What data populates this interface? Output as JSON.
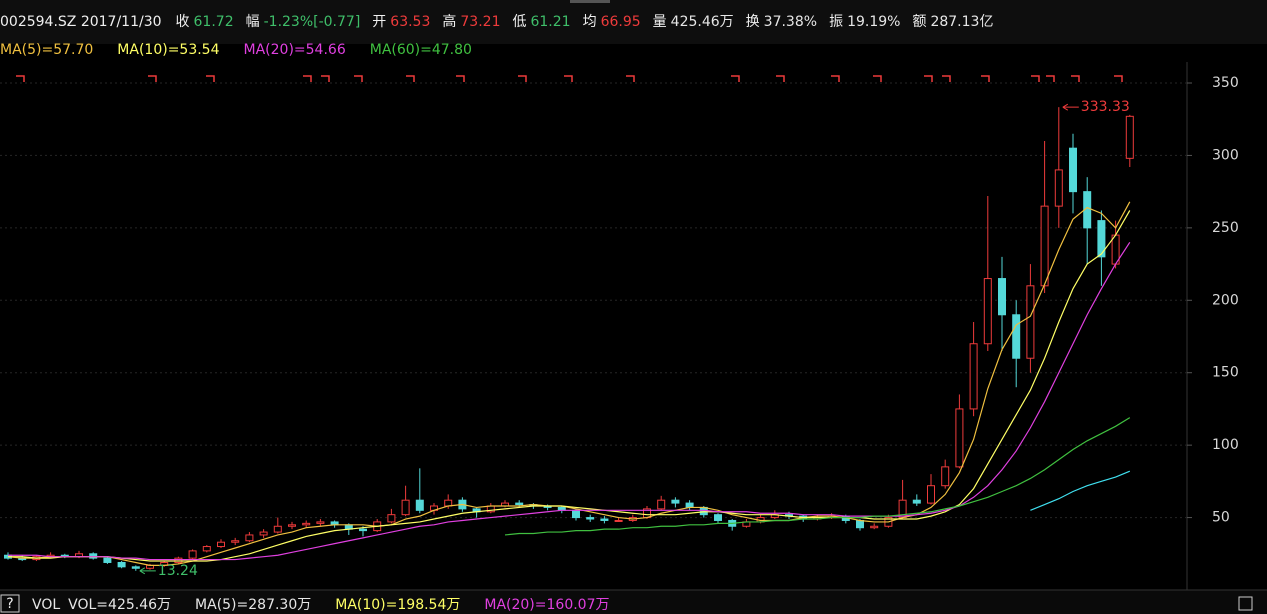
{
  "header": {
    "title": "002594.SZ 2017/11/30",
    "items": [
      {
        "label": "收",
        "value": "61.72",
        "color": "#3fbf6a"
      },
      {
        "label": "幅",
        "value": "-1.23%[-0.77]",
        "color": "#3fbf6a"
      },
      {
        "label": "开",
        "value": "63.53",
        "color": "#ee3b3b"
      },
      {
        "label": "高",
        "value": "73.21",
        "color": "#ee3b3b"
      },
      {
        "label": "低",
        "value": "61.21",
        "color": "#3fbf6a"
      },
      {
        "label": "均",
        "value": "66.95",
        "color": "#ee3b3b"
      },
      {
        "label": "量",
        "value": "425.46万",
        "color": "#e6e6e6"
      },
      {
        "label": "换",
        "value": "37.38%",
        "color": "#e6e6e6"
      },
      {
        "label": "振",
        "value": "19.19%",
        "color": "#e6e6e6"
      },
      {
        "label": "额",
        "value": "287.13亿",
        "color": "#e6e6e6"
      }
    ]
  },
  "volume_bar": {
    "help": "?",
    "items": [
      {
        "text": "VOL",
        "color": "#e6e6e6"
      },
      {
        "text": "VOL=425.46万",
        "color": "#e6e6e6"
      },
      {
        "text": "MA(5)=287.30万",
        "color": "#e6e6e6"
      },
      {
        "text": "MA(10)=198.54万",
        "color": "#ffff66"
      },
      {
        "text": "MA(20)=160.07万",
        "color": "#e040e0"
      }
    ]
  },
  "chart_data": {
    "type": "candlestick",
    "up_color": "#ee3b3b",
    "down_color": "#54d8d8",
    "ylim": [
      0,
      364.5
    ],
    "yticks": [
      50,
      100,
      150,
      200,
      250,
      300,
      350
    ],
    "grid": true,
    "open": [
      24,
      22,
      21,
      23,
      24,
      23,
      25,
      22,
      19,
      16,
      15,
      17,
      19,
      22,
      27,
      30,
      33,
      34,
      38,
      40,
      44,
      45,
      46,
      47,
      45,
      42,
      41,
      47,
      52,
      62,
      55,
      58,
      62,
      56,
      54,
      58,
      60,
      59,
      58,
      57,
      55,
      50,
      49,
      48,
      48,
      50,
      56,
      62,
      60,
      57,
      52,
      48,
      44,
      47,
      50,
      52,
      51,
      49,
      50,
      51,
      48,
      43,
      44,
      50,
      62,
      60,
      72,
      85,
      125,
      170,
      215,
      190,
      160,
      210,
      265,
      305,
      275,
      255,
      225,
      298
    ],
    "high": [
      26,
      24,
      24,
      26,
      25,
      27,
      26,
      23,
      20,
      17,
      18,
      20,
      23,
      28,
      31,
      35,
      36,
      40,
      42,
      50,
      47,
      48,
      49,
      48,
      46,
      44,
      49,
      56,
      72,
      84,
      60,
      66,
      64,
      57,
      60,
      62,
      62,
      60,
      59,
      58,
      56,
      52,
      51,
      50,
      52,
      58,
      65,
      64,
      62,
      58,
      53,
      49,
      49,
      52,
      55,
      54,
      52,
      52,
      53,
      52,
      49,
      46,
      52,
      76,
      66,
      80,
      90,
      135,
      185,
      272,
      230,
      200,
      225,
      310,
      333.33,
      315,
      285,
      262,
      255,
      328
    ],
    "low": [
      21,
      20,
      20,
      22,
      22,
      22,
      21,
      18,
      15,
      13.24,
      14,
      16,
      18,
      21,
      26,
      29,
      31,
      33,
      36,
      39,
      42,
      43,
      44,
      43,
      38,
      37,
      40,
      46,
      51,
      53,
      52,
      56,
      54,
      50,
      53,
      57,
      57,
      56,
      55,
      53,
      48,
      47,
      46,
      47,
      47,
      49,
      55,
      57,
      55,
      50,
      46,
      41,
      43,
      46,
      49,
      49,
      47,
      48,
      49,
      46,
      41,
      42,
      43,
      49,
      58,
      59,
      70,
      84,
      120,
      165,
      165,
      140,
      150,
      205,
      250,
      260,
      225,
      210,
      222,
      292
    ],
    "close": [
      22,
      21,
      23,
      24,
      23,
      25,
      22,
      19,
      16,
      15,
      17,
      19,
      22,
      27,
      30,
      33,
      34,
      38,
      40,
      44,
      45,
      46,
      47,
      45,
      42,
      41,
      47,
      52,
      62,
      55,
      58,
      62,
      56,
      54,
      58,
      60,
      59,
      58,
      57,
      55,
      50,
      49,
      48,
      48,
      50,
      56,
      62,
      60,
      57,
      52,
      48,
      44,
      47,
      50,
      52,
      51,
      49,
      50,
      51,
      48,
      43,
      44,
      50,
      62,
      60,
      72,
      85,
      125,
      170,
      215,
      190,
      160,
      210,
      265,
      290,
      275,
      250,
      230,
      245,
      327
    ],
    "series": [
      {
        "name": "MA(5)=57.70",
        "color": "#f0c040",
        "values": [
          23,
          22,
          22,
          23,
          23,
          23,
          23,
          23,
          21,
          19,
          17,
          17,
          18,
          20,
          23,
          26,
          29,
          32,
          35,
          38,
          40,
          43,
          44,
          45,
          45,
          45,
          44,
          45,
          49,
          51,
          55,
          58,
          59,
          57,
          58,
          58,
          58,
          59,
          58,
          58,
          56,
          54,
          52,
          50,
          49,
          50,
          53,
          55,
          57,
          57,
          55,
          52,
          50,
          48,
          48,
          48,
          50,
          51,
          51,
          50,
          48,
          47,
          47,
          50,
          52,
          57,
          66,
          81,
          104,
          139,
          166,
          183,
          189,
          211,
          235,
          256,
          264,
          260,
          250,
          268
        ]
      },
      {
        "name": "MA(10)=53.54",
        "color": "#ffff66",
        "values": [
          23,
          23,
          22,
          22,
          23,
          23,
          23,
          23,
          22,
          21,
          20,
          20,
          20,
          20,
          20,
          21,
          23,
          25,
          28,
          31,
          34,
          37,
          39,
          41,
          42,
          43,
          44,
          45,
          46,
          47,
          49,
          51,
          53,
          54,
          55,
          56,
          57,
          58,
          58,
          58,
          57,
          56,
          55,
          54,
          53,
          52,
          52,
          52,
          53,
          54,
          54,
          53,
          52,
          52,
          52,
          51,
          50,
          50,
          50,
          50,
          50,
          49,
          49,
          49,
          49,
          51,
          54,
          59,
          70,
          87,
          104,
          121,
          138,
          160,
          185,
          208,
          225,
          232,
          245,
          262
        ]
      },
      {
        "name": "MA(20)=54.66",
        "color": "#e040e0",
        "values": [
          24,
          24,
          24,
          23,
          23,
          23,
          23,
          23,
          22,
          22,
          21,
          21,
          21,
          21,
          21,
          21,
          21,
          22,
          23,
          24,
          26,
          28,
          30,
          32,
          34,
          36,
          38,
          40,
          42,
          44,
          45,
          47,
          48,
          49,
          50,
          51,
          52,
          53,
          54,
          55,
          55,
          55,
          55,
          55,
          55,
          55,
          55,
          55,
          55,
          55,
          54,
          54,
          54,
          53,
          53,
          53,
          52,
          52,
          52,
          51,
          51,
          51,
          51,
          51,
          52,
          53,
          55,
          58,
          64,
          72,
          83,
          96,
          112,
          130,
          150,
          170,
          190,
          208,
          225,
          240
        ]
      },
      {
        "name": "MA(60)=47.80",
        "color": "#40c040",
        "values": [
          null,
          null,
          null,
          null,
          null,
          null,
          null,
          null,
          null,
          null,
          null,
          null,
          null,
          null,
          null,
          null,
          null,
          null,
          null,
          null,
          null,
          null,
          null,
          null,
          null,
          null,
          null,
          null,
          null,
          null,
          null,
          null,
          null,
          null,
          null,
          38,
          39,
          39,
          40,
          40,
          41,
          41,
          42,
          42,
          43,
          43,
          44,
          44,
          45,
          45,
          46,
          46,
          47,
          47,
          48,
          48,
          49,
          49,
          50,
          50,
          50,
          51,
          51,
          52,
          53,
          54,
          56,
          58,
          61,
          64,
          68,
          72,
          77,
          83,
          90,
          97,
          103,
          108,
          113,
          119
        ]
      },
      {
        "color": "#40e0f0",
        "values": [
          null,
          null,
          null,
          null,
          null,
          null,
          null,
          null,
          null,
          null,
          null,
          null,
          null,
          null,
          null,
          null,
          null,
          null,
          null,
          null,
          null,
          null,
          null,
          null,
          null,
          null,
          null,
          null,
          null,
          null,
          null,
          null,
          null,
          null,
          null,
          null,
          null,
          null,
          null,
          null,
          null,
          null,
          null,
          null,
          null,
          null,
          null,
          null,
          null,
          null,
          null,
          null,
          null,
          null,
          null,
          null,
          null,
          null,
          null,
          null,
          null,
          null,
          null,
          null,
          null,
          null,
          null,
          null,
          null,
          null,
          null,
          null,
          55,
          59,
          63,
          68,
          72,
          75,
          78,
          82
        ]
      }
    ]
  }
}
